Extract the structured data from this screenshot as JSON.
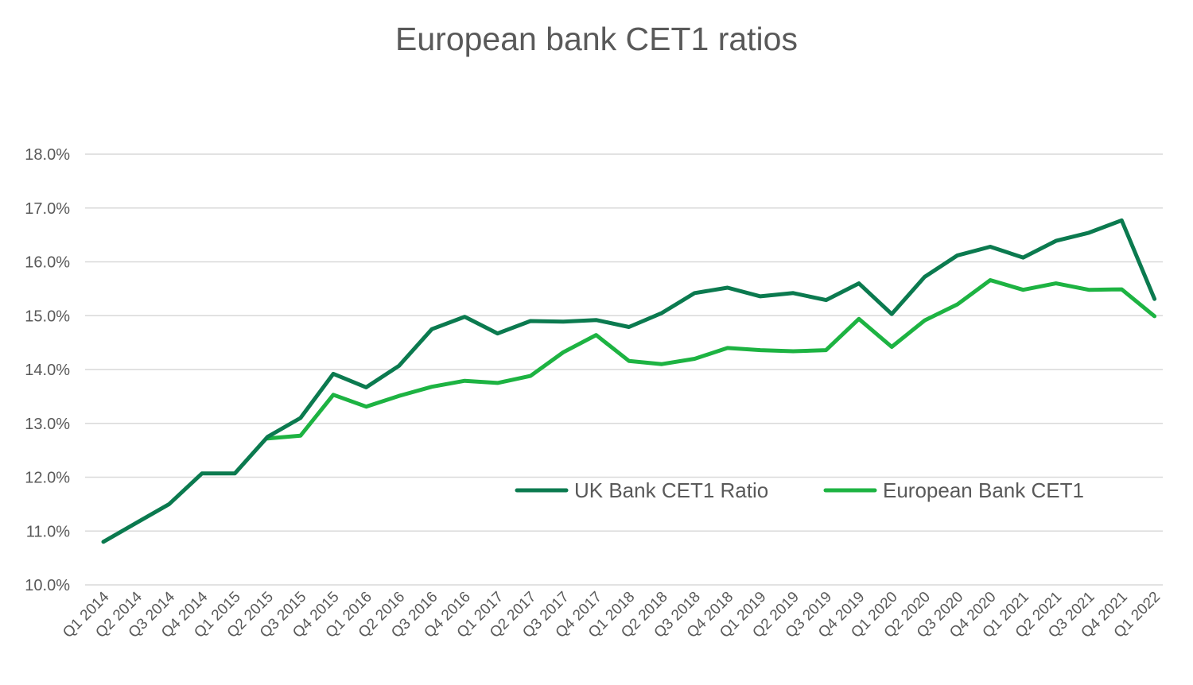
{
  "chart_data": {
    "type": "line",
    "title": "European bank CET1 ratios",
    "xlabel": "",
    "ylabel": "",
    "ylim": [
      10.0,
      18.0
    ],
    "y_ticks": [
      "10.0%",
      "11.0%",
      "12.0%",
      "13.0%",
      "14.0%",
      "15.0%",
      "16.0%",
      "17.0%",
      "18.0%"
    ],
    "grid": true,
    "legend_position": "lower-right",
    "categories": [
      "Q1 2014",
      "Q2 2014",
      "Q3 2014",
      "Q4 2014",
      "Q1 2015",
      "Q2 2015",
      "Q3 2015",
      "Q4 2015",
      "Q1 2016",
      "Q2 2016",
      "Q3 2016",
      "Q4 2016",
      "Q1 2017",
      "Q2 2017",
      "Q3 2017",
      "Q4 2017",
      "Q1 2018",
      "Q2 2018",
      "Q3 2018",
      "Q4 2018",
      "Q1 2019",
      "Q2 2019",
      "Q3 2019",
      "Q4 2019",
      "Q1 2020",
      "Q2 2020",
      "Q3 2020",
      "Q4 2020",
      "Q1 2021",
      "Q2 2021",
      "Q3 2021",
      "Q4 2021",
      "Q1 2022"
    ],
    "series": [
      {
        "name": "UK Bank CET1 Ratio",
        "color": "#0b7a4f",
        "values": [
          10.8,
          11.15,
          11.5,
          12.07,
          12.07,
          12.75,
          13.1,
          13.92,
          13.67,
          14.07,
          14.75,
          14.98,
          14.67,
          14.9,
          14.89,
          14.92,
          14.79,
          15.05,
          15.42,
          15.52,
          15.36,
          15.42,
          15.29,
          15.6,
          15.03,
          15.72,
          16.12,
          16.28,
          16.08,
          16.39,
          16.54,
          16.77,
          15.31
        ]
      },
      {
        "name": "European Bank CET1",
        "color": "#1db342",
        "values": [
          null,
          null,
          null,
          null,
          null,
          12.72,
          12.77,
          13.53,
          13.31,
          13.51,
          13.68,
          13.79,
          13.75,
          13.88,
          14.32,
          14.64,
          14.16,
          14.1,
          14.2,
          14.4,
          14.36,
          14.34,
          14.36,
          14.94,
          14.42,
          14.91,
          15.21,
          15.66,
          15.48,
          15.6,
          15.48,
          15.49,
          14.99
        ]
      }
    ]
  }
}
